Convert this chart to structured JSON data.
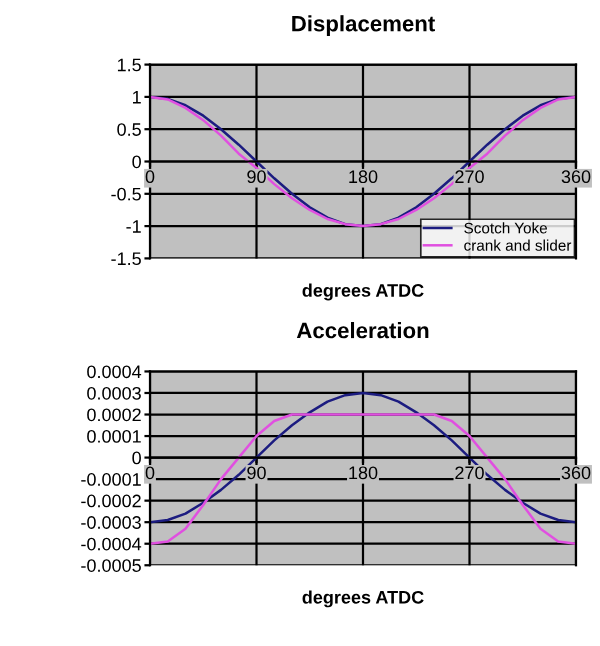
{
  "chart_data": [
    {
      "type": "line",
      "title": "Displacement",
      "xlabel": "degrees ATDC",
      "x": [
        0,
        15,
        30,
        45,
        60,
        75,
        90,
        105,
        120,
        135,
        150,
        165,
        180,
        195,
        210,
        225,
        240,
        255,
        270,
        285,
        300,
        315,
        330,
        345,
        360
      ],
      "series": [
        {
          "name": "Scotch Yoke",
          "color": "#1c1c80",
          "values": [
            1,
            0.97,
            0.87,
            0.71,
            0.5,
            0.26,
            0,
            -0.26,
            -0.5,
            -0.71,
            -0.87,
            -0.97,
            -1,
            -0.97,
            -0.87,
            -0.71,
            -0.5,
            -0.26,
            0,
            0.26,
            0.5,
            0.71,
            0.87,
            0.97,
            1
          ]
        },
        {
          "name": "crank and slider",
          "color": "#e050e0",
          "values": [
            1,
            0.96,
            0.83,
            0.64,
            0.4,
            0.12,
            -0.1,
            -0.35,
            -0.57,
            -0.75,
            -0.89,
            -0.97,
            -1,
            -0.97,
            -0.89,
            -0.75,
            -0.57,
            -0.35,
            -0.1,
            0.12,
            0.4,
            0.64,
            0.83,
            0.96,
            1
          ]
        }
      ],
      "xlim": [
        0,
        360
      ],
      "xticks": [
        0,
        90,
        180,
        270,
        360
      ],
      "ylim": [
        -1.5,
        1.5
      ],
      "yticks": [
        -1.5,
        -1,
        -0.5,
        0,
        0.5,
        1,
        1.5
      ],
      "grid": true,
      "legend": "bottom right"
    },
    {
      "type": "line",
      "title": "Acceleration",
      "xlabel": "degrees ATDC",
      "x": [
        0,
        15,
        30,
        45,
        60,
        75,
        90,
        105,
        120,
        135,
        150,
        165,
        180,
        195,
        210,
        225,
        240,
        255,
        270,
        285,
        300,
        315,
        330,
        345,
        360
      ],
      "series": [
        {
          "color": "#1c1c80",
          "values": [
            -0.0003,
            -0.00029,
            -0.00026,
            -0.00021,
            -0.00015,
            -8e-05,
            0,
            8e-05,
            0.00015,
            0.00021,
            0.00026,
            0.00029,
            0.0003,
            0.00029,
            0.00026,
            0.00021,
            0.00015,
            8e-05,
            0,
            -8e-05,
            -0.00015,
            -0.00021,
            -0.00026,
            -0.00029,
            -0.0003
          ]
        },
        {
          "color": "#e050e0",
          "values": [
            -0.0004,
            -0.00039,
            -0.00033,
            -0.00022,
            -0.0001,
            0,
            0.0001,
            0.00017,
            0.0002,
            0.0002,
            0.0002,
            0.0002,
            0.0002,
            0.0002,
            0.0002,
            0.0002,
            0.0002,
            0.00017,
            0.0001,
            0,
            -0.0001,
            -0.00022,
            -0.00033,
            -0.00039,
            -0.0004
          ]
        }
      ],
      "xlim": [
        0,
        360
      ],
      "xticks": [
        0,
        90,
        180,
        270,
        360
      ],
      "ylim": [
        -0.0005,
        0.0004
      ],
      "yticks": [
        -0.0005,
        -0.0004,
        -0.0003,
        -0.0002,
        -0.0001,
        0,
        0.0001,
        0.0002,
        0.0003,
        0.0004
      ],
      "grid": true
    }
  ]
}
